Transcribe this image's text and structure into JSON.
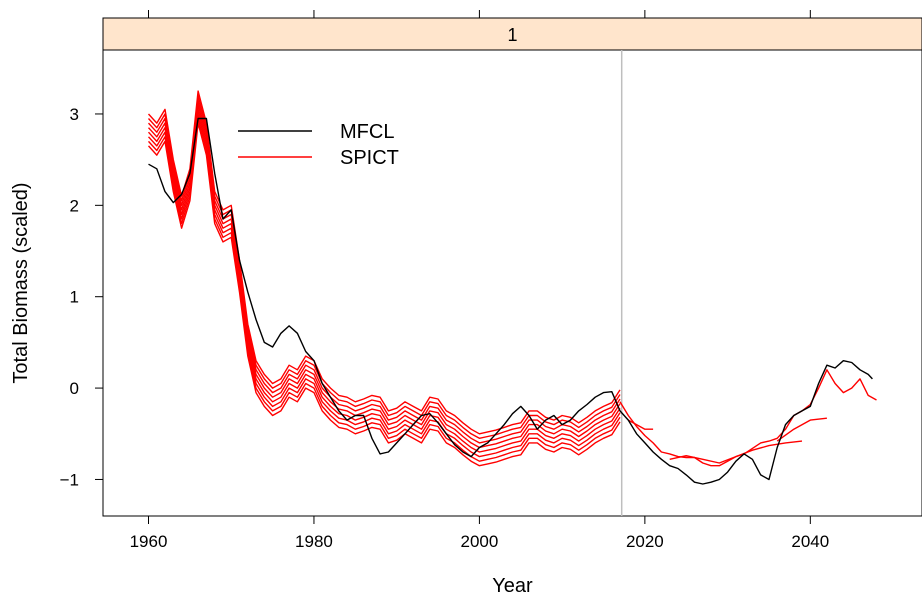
{
  "chart_data": {
    "type": "line",
    "strip_label": "1",
    "xlabel": "Year",
    "ylabel": "Total Biomass (scaled)",
    "xlim": [
      1954.5,
      2053.5
    ],
    "ylim": [
      -1.4,
      3.7
    ],
    "x_ticks": [
      1960,
      1980,
      2000,
      2020,
      2040
    ],
    "y_ticks": [
      -1,
      0,
      1,
      2,
      3
    ],
    "reference_line": {
      "x": 2017.2,
      "color": "#bebebe"
    },
    "legend": {
      "position": "top-left",
      "entries": [
        {
          "label": "MFCL",
          "color": "#000000"
        },
        {
          "label": "SPICT",
          "color": "#ff0000"
        }
      ]
    },
    "series": [
      {
        "name": "MFCL",
        "color": "#000000",
        "points": [
          [
            1960,
            2.45
          ],
          [
            1961,
            2.4
          ],
          [
            1962,
            2.15
          ],
          [
            1963,
            2.03
          ],
          [
            1964,
            2.12
          ],
          [
            1965,
            2.35
          ],
          [
            1966,
            2.95
          ],
          [
            1967,
            2.95
          ],
          [
            1968,
            2.35
          ],
          [
            1969,
            1.85
          ],
          [
            1970,
            1.95
          ],
          [
            1971,
            1.4
          ],
          [
            1972,
            1.05
          ],
          [
            1973,
            0.75
          ],
          [
            1974,
            0.5
          ],
          [
            1975,
            0.45
          ],
          [
            1976,
            0.6
          ],
          [
            1977,
            0.68
          ],
          [
            1978,
            0.6
          ],
          [
            1979,
            0.4
          ],
          [
            1980,
            0.3
          ],
          [
            1981,
            0.05
          ],
          [
            1982,
            -0.1
          ],
          [
            1983,
            -0.25
          ],
          [
            1984,
            -0.35
          ],
          [
            1985,
            -0.3
          ],
          [
            1986,
            -0.3
          ],
          [
            1987,
            -0.55
          ],
          [
            1988,
            -0.72
          ],
          [
            1989,
            -0.7
          ],
          [
            1990,
            -0.6
          ],
          [
            1991,
            -0.5
          ],
          [
            1992,
            -0.4
          ],
          [
            1993,
            -0.3
          ],
          [
            1994,
            -0.28
          ],
          [
            1995,
            -0.38
          ],
          [
            1996,
            -0.5
          ],
          [
            1997,
            -0.62
          ],
          [
            1998,
            -0.7
          ],
          [
            1999,
            -0.75
          ],
          [
            2000,
            -0.65
          ],
          [
            2001,
            -0.6
          ],
          [
            2002,
            -0.5
          ],
          [
            2003,
            -0.4
          ],
          [
            2004,
            -0.28
          ],
          [
            2005,
            -0.2
          ],
          [
            2006,
            -0.3
          ],
          [
            2007,
            -0.45
          ],
          [
            2008,
            -0.35
          ],
          [
            2009,
            -0.3
          ],
          [
            2010,
            -0.4
          ],
          [
            2011,
            -0.35
          ],
          [
            2012,
            -0.25
          ],
          [
            2013,
            -0.18
          ],
          [
            2014,
            -0.1
          ],
          [
            2015,
            -0.05
          ],
          [
            2016,
            -0.04
          ],
          [
            2017,
            -0.25
          ],
          [
            2018,
            -0.35
          ],
          [
            2019,
            -0.5
          ],
          [
            2020,
            -0.6
          ],
          [
            2021,
            -0.7
          ],
          [
            2022,
            -0.78
          ],
          [
            2023,
            -0.85
          ],
          [
            2024,
            -0.88
          ],
          [
            2025,
            -0.95
          ],
          [
            2026,
            -1.03
          ],
          [
            2027,
            -1.05
          ],
          [
            2028,
            -1.03
          ],
          [
            2029,
            -1.0
          ],
          [
            2030,
            -0.92
          ],
          [
            2031,
            -0.8
          ],
          [
            2032,
            -0.72
          ],
          [
            2033,
            -0.78
          ],
          [
            2034,
            -0.95
          ],
          [
            2035,
            -1.0
          ],
          [
            2036,
            -0.65
          ],
          [
            2037,
            -0.4
          ],
          [
            2038,
            -0.3
          ],
          [
            2039,
            -0.25
          ],
          [
            2040,
            -0.2
          ],
          [
            2041,
            0.05
          ],
          [
            2042,
            0.25
          ],
          [
            2043,
            0.22
          ],
          [
            2044,
            0.3
          ],
          [
            2045,
            0.28
          ],
          [
            2046,
            0.2
          ],
          [
            2047,
            0.15
          ],
          [
            2047.5,
            0.1
          ]
        ]
      },
      {
        "name": "SPICT",
        "color": "#ff0000",
        "runs": [
          {
            "offset": 0.0,
            "points": [
              [
                1960,
                2.8
              ],
              [
                1961,
                2.7
              ],
              [
                1962,
                2.85
              ],
              [
                1963,
                2.3
              ],
              [
                1964,
                1.9
              ],
              [
                1965,
                2.2
              ],
              [
                1966,
                3.05
              ],
              [
                1967,
                2.7
              ],
              [
                1968,
                1.95
              ],
              [
                1969,
                1.75
              ],
              [
                1970,
                1.8
              ],
              [
                1971,
                1.2
              ],
              [
                1972,
                0.5
              ],
              [
                1973,
                0.1
              ],
              [
                1974,
                -0.05
              ],
              [
                1975,
                -0.15
              ],
              [
                1976,
                -0.1
              ],
              [
                1977,
                0.05
              ],
              [
                1978,
                0.0
              ],
              [
                1979,
                0.15
              ],
              [
                1980,
                0.1
              ],
              [
                1981,
                -0.1
              ],
              [
                1982,
                -0.2
              ],
              [
                1983,
                -0.28
              ],
              [
                1984,
                -0.3
              ],
              [
                1985,
                -0.35
              ],
              [
                1986,
                -0.32
              ],
              [
                1987,
                -0.28
              ],
              [
                1988,
                -0.3
              ],
              [
                1989,
                -0.45
              ],
              [
                1990,
                -0.42
              ],
              [
                1991,
                -0.35
              ],
              [
                1992,
                -0.4
              ],
              [
                1993,
                -0.45
              ],
              [
                1994,
                -0.3
              ],
              [
                1995,
                -0.32
              ],
              [
                1996,
                -0.45
              ],
              [
                1997,
                -0.5
              ],
              [
                1998,
                -0.58
              ],
              [
                1999,
                -0.65
              ],
              [
                2000,
                -0.7
              ],
              [
                2001,
                -0.68
              ],
              [
                2002,
                -0.66
              ],
              [
                2003,
                -0.63
              ],
              [
                2004,
                -0.6
              ],
              [
                2005,
                -0.58
              ],
              [
                2006,
                -0.45
              ],
              [
                2007,
                -0.45
              ],
              [
                2008,
                -0.52
              ],
              [
                2009,
                -0.55
              ],
              [
                2010,
                -0.5
              ],
              [
                2011,
                -0.52
              ],
              [
                2012,
                -0.58
              ],
              [
                2013,
                -0.52
              ],
              [
                2014,
                -0.45
              ],
              [
                2015,
                -0.4
              ],
              [
                2016,
                -0.36
              ],
              [
                2017,
                -0.22
              ]
            ]
          },
          {
            "offset": 0.05
          },
          {
            "offset": 0.1
          },
          {
            "offset": 0.15
          },
          {
            "offset": 0.2
          },
          {
            "offset": -0.05
          },
          {
            "offset": -0.1
          },
          {
            "offset": -0.15
          },
          {
            "offset": 0.0,
            "points": [
              [
                2017,
                -0.15
              ],
              [
                2018,
                -0.3
              ],
              [
                2019,
                -0.42
              ],
              [
                2020,
                -0.52
              ],
              [
                2021,
                -0.6
              ],
              [
                2022,
                -0.7
              ],
              [
                2023,
                -0.72
              ],
              [
                2024,
                -0.75
              ],
              [
                2025,
                -0.76
              ],
              [
                2026,
                -0.76
              ],
              [
                2027,
                -0.82
              ],
              [
                2028,
                -0.85
              ],
              [
                2029,
                -0.85
              ],
              [
                2030,
                -0.8
              ],
              [
                2031,
                -0.75
              ],
              [
                2032,
                -0.72
              ],
              [
                2033,
                -0.66
              ],
              [
                2034,
                -0.6
              ],
              [
                2035,
                -0.58
              ],
              [
                2036,
                -0.55
              ],
              [
                2037,
                -0.45
              ],
              [
                2038,
                -0.3
              ],
              [
                2039,
                -0.25
              ],
              [
                2040,
                -0.18
              ],
              [
                2041,
                0.0
              ],
              [
                2042,
                0.2
              ],
              [
                2043,
                0.05
              ],
              [
                2044,
                -0.05
              ],
              [
                2045,
                0.0
              ],
              [
                2046,
                0.1
              ],
              [
                2047,
                -0.08
              ],
              [
                2048,
                -0.13
              ]
            ]
          },
          {
            "offset": 0.0,
            "points": [
              [
                2018,
                -0.35
              ],
              [
                2020,
                -0.45
              ],
              [
                2021,
                -0.45
              ]
            ]
          },
          {
            "offset": 0.0,
            "points": [
              [
                2023,
                -0.78
              ],
              [
                2025,
                -0.74
              ],
              [
                2027,
                -0.78
              ],
              [
                2029,
                -0.82
              ],
              [
                2031,
                -0.75
              ],
              [
                2033,
                -0.68
              ],
              [
                2035,
                -0.63
              ],
              [
                2037,
                -0.6
              ],
              [
                2039,
                -0.58
              ]
            ]
          },
          {
            "offset": 0.0,
            "points": [
              [
                2036,
                -0.58
              ],
              [
                2038,
                -0.45
              ],
              [
                2040,
                -0.35
              ],
              [
                2042,
                -0.33
              ]
            ]
          }
        ]
      }
    ]
  }
}
